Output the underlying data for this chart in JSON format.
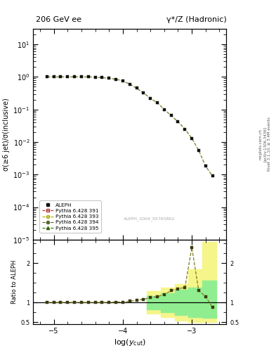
{
  "title_left": "206 GeV ee",
  "title_right": "γ*/Z (Hadronic)",
  "ylabel_main": "σ(≥6 jet)/σ(inclusive)",
  "ylabel_ratio": "Ratio to ALEPH",
  "xlabel": "log(y_{cut})",
  "right_label_1": "Rivet 3.1.10, ≥ 3.4M events",
  "right_label_2": "[arXiv:1306.3436]",
  "right_label_3": "mcplots.cern.ch",
  "watermark": "ALEPH_2004_S5765862",
  "data_x": [
    -5.1,
    -5.0,
    -4.9,
    -4.8,
    -4.7,
    -4.6,
    -4.5,
    -4.4,
    -4.3,
    -4.2,
    -4.1,
    -4.0,
    -3.9,
    -3.8,
    -3.7,
    -3.6,
    -3.5,
    -3.4,
    -3.3,
    -3.2,
    -3.1,
    -3.0,
    -2.9,
    -2.8,
    -2.7
  ],
  "data_y": [
    1.0,
    1.0,
    1.0,
    1.0,
    1.0,
    1.0,
    1.0,
    0.98,
    0.95,
    0.9,
    0.85,
    0.75,
    0.6,
    0.45,
    0.32,
    0.22,
    0.16,
    0.1,
    0.065,
    0.042,
    0.025,
    0.013,
    0.0055,
    0.0018,
    0.0009
  ],
  "mc_x": [
    -5.1,
    -5.0,
    -4.9,
    -4.8,
    -4.7,
    -4.6,
    -4.5,
    -4.4,
    -4.3,
    -4.2,
    -4.1,
    -4.0,
    -3.9,
    -3.8,
    -3.7,
    -3.6,
    -3.5,
    -3.4,
    -3.3,
    -3.2,
    -3.1,
    -3.0,
    -2.9,
    -2.8,
    -2.7
  ],
  "mc_y": [
    1.0,
    1.0,
    1.0,
    1.0,
    1.0,
    1.0,
    1.0,
    0.98,
    0.95,
    0.9,
    0.85,
    0.75,
    0.6,
    0.45,
    0.32,
    0.22,
    0.16,
    0.1,
    0.065,
    0.042,
    0.025,
    0.013,
    0.0055,
    0.0018,
    0.0009
  ],
  "ratio_x": [
    -5.1,
    -5.0,
    -4.9,
    -4.8,
    -4.7,
    -4.6,
    -4.5,
    -4.4,
    -4.3,
    -4.2,
    -4.1,
    -4.0,
    -3.9,
    -3.8,
    -3.7,
    -3.6,
    -3.5,
    -3.4,
    -3.3,
    -3.2,
    -3.1,
    -3.0,
    -2.9,
    -2.8,
    -2.7
  ],
  "ratio_y": [
    1.0,
    1.0,
    1.0,
    1.0,
    1.0,
    1.0,
    1.0,
    1.0,
    1.0,
    1.0,
    1.01,
    1.01,
    1.03,
    1.05,
    1.08,
    1.12,
    1.15,
    1.2,
    1.3,
    1.35,
    1.38,
    2.4,
    1.3,
    1.15,
    0.87
  ],
  "band_yellow_edges": [
    -3.55,
    -3.35,
    -3.15,
    -2.95,
    -2.75
  ],
  "band_yellow_lo": [
    0.72,
    0.63,
    0.53,
    0.5,
    0.5
  ],
  "band_yellow_hi": [
    1.28,
    1.38,
    1.47,
    1.85,
    2.55
  ],
  "band_green_edges": [
    -3.55,
    -3.35,
    -3.15,
    -2.95,
    -2.75
  ],
  "band_green_lo": [
    0.83,
    0.76,
    0.68,
    0.62,
    0.6
  ],
  "band_green_hi": [
    1.17,
    1.24,
    1.32,
    1.38,
    1.55
  ],
  "xlim": [
    -5.3,
    -2.5
  ],
  "xticks": [
    -5.0,
    -4.0,
    -3.0
  ],
  "ylim_main_log": [
    1e-05,
    30
  ],
  "ylim_ratio": [
    0.45,
    2.6
  ],
  "color_data": "#111111",
  "color_mc": "#7a7a1a",
  "color_band_inner": "#90ee90",
  "color_band_outer": "#f5f58a",
  "legend_entries": [
    "ALEPH",
    "Pythia 6.428 391",
    "Pythia 6.428 393",
    "Pythia 6.428 394",
    "Pythia 6.428 395"
  ],
  "legend_mc_colors": [
    "#bb3333",
    "#aaaa00",
    "#556633",
    "#336600"
  ],
  "legend_mc_markers": [
    "s",
    "o",
    "o",
    "^"
  ],
  "legend_mc_mfc": [
    "none",
    "none",
    "#556633",
    "#336600"
  ]
}
